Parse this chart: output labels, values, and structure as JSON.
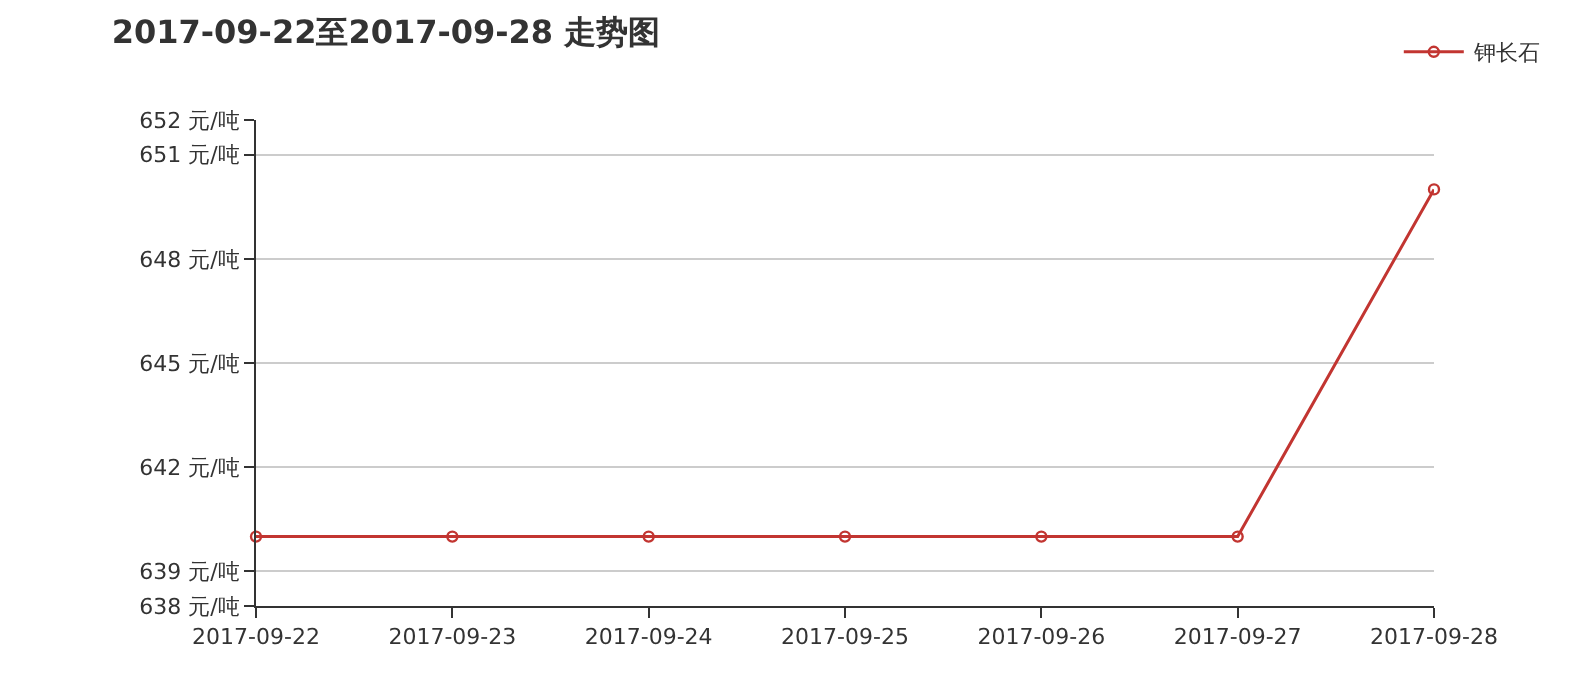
{
  "chart_data": {
    "type": "line",
    "title": "2017-09-22至2017-09-28 走势图",
    "categories": [
      "2017-09-22",
      "2017-09-23",
      "2017-09-24",
      "2017-09-25",
      "2017-09-26",
      "2017-09-27",
      "2017-09-28"
    ],
    "series": [
      {
        "name": "钾长石",
        "color": "#c23531",
        "values": [
          640,
          640,
          640,
          640,
          640,
          640,
          650
        ]
      }
    ],
    "ylim": [
      638,
      652
    ],
    "yticks": [
      {
        "value": 638,
        "label": "638 元/吨"
      },
      {
        "value": 639,
        "label": "639 元/吨"
      },
      {
        "value": 642,
        "label": "642 元/吨"
      },
      {
        "value": 645,
        "label": "645 元/吨"
      },
      {
        "value": 648,
        "label": "648 元/吨"
      },
      {
        "value": 651,
        "label": "651 元/吨"
      },
      {
        "value": 652,
        "label": "652 元/吨"
      }
    ],
    "grid": "y",
    "legend": "top right",
    "marker": "circle",
    "line_style": "solid"
  }
}
